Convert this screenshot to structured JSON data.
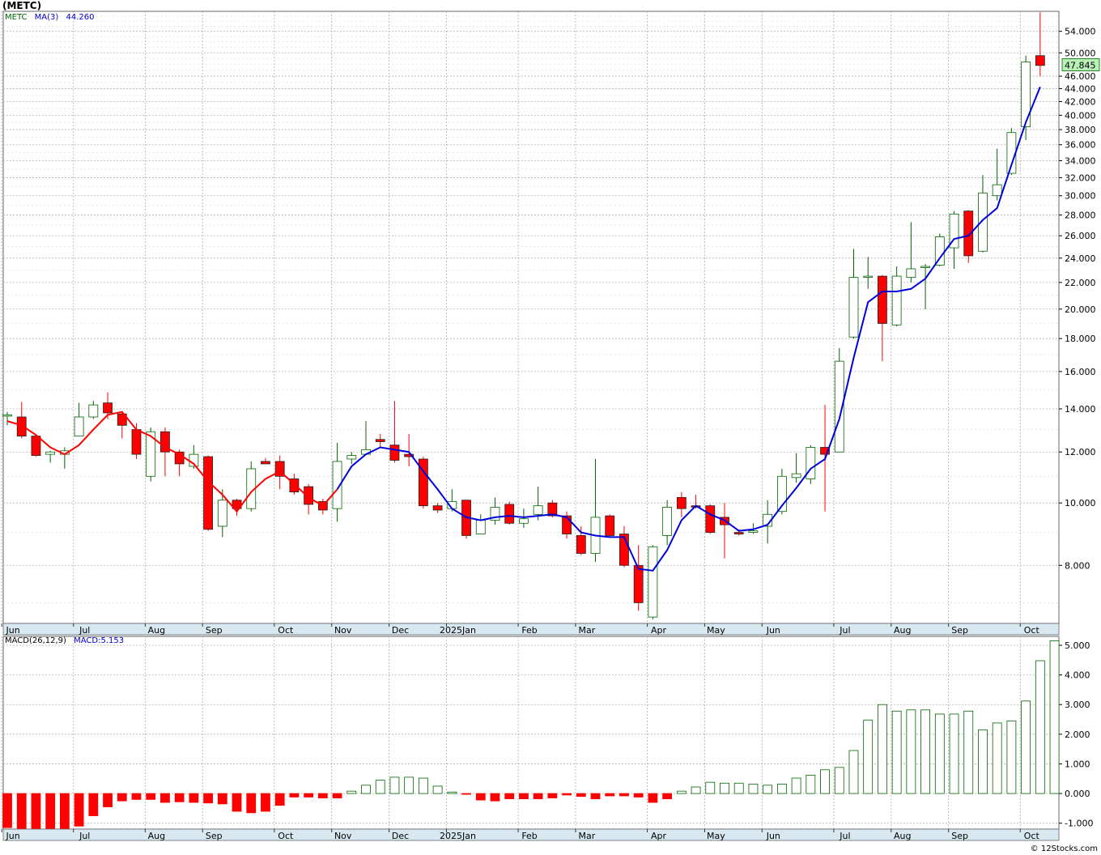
{
  "header": {
    "title": "(METC)",
    "legend": {
      "symbol": "METC",
      "ma_label": "MA(3)",
      "ma_value": "44.260"
    },
    "macd_legend": {
      "label": "MACD(26,12,9)",
      "value_label": "MACD:5.153"
    },
    "copyright": "© 12Stocks.com"
  },
  "colors": {
    "up": "#006400",
    "down": "#ff0000",
    "ma_up": "#0000dd",
    "ma_down": "#ff0000",
    "axis_bar": "#d8e8f0",
    "last_price_bg": "#b8f0b8"
  },
  "chart_data": [
    {
      "type": "candlestick",
      "scale": "log",
      "ylim": [
        6.5,
        58
      ],
      "yticks": [
        "54.000",
        "50.000",
        "46.000",
        "44.000",
        "42.000",
        "40.000",
        "38.000",
        "36.000",
        "34.000",
        "32.000",
        "30.000",
        "28.000",
        "26.000",
        "24.000",
        "22.000",
        "20.000",
        "18.000",
        "16.000",
        "14.000",
        "12.000",
        "10.000",
        "8.000"
      ],
      "x_month_labels": [
        "Jun",
        "Jul",
        "Aug",
        "Sep",
        "Oct",
        "Nov",
        "Dec",
        "2025Jan",
        "Feb",
        "Mar",
        "Apr",
        "May",
        "Jun",
        "Jul",
        "Aug",
        "Sep",
        "Oct"
      ],
      "last_price": "47.845",
      "candles": [
        {
          "o": 13.7,
          "h": 13.85,
          "l": 13.2,
          "c": 13.7
        },
        {
          "o": 13.6,
          "h": 14.35,
          "l": 12.6,
          "c": 12.7
        },
        {
          "o": 12.7,
          "h": 12.75,
          "l": 11.8,
          "c": 11.85
        },
        {
          "o": 11.9,
          "h": 12.05,
          "l": 11.55,
          "c": 12.0
        },
        {
          "o": 11.9,
          "h": 12.2,
          "l": 11.3,
          "c": 12.05
        },
        {
          "o": 12.7,
          "h": 14.3,
          "l": 12.7,
          "c": 13.6
        },
        {
          "o": 13.6,
          "h": 14.4,
          "l": 13.5,
          "c": 14.2
        },
        {
          "o": 14.3,
          "h": 14.85,
          "l": 13.5,
          "c": 13.8
        },
        {
          "o": 13.75,
          "h": 13.85,
          "l": 12.6,
          "c": 13.2
        },
        {
          "o": 13.0,
          "h": 13.3,
          "l": 11.7,
          "c": 11.9
        },
        {
          "o": 11.0,
          "h": 13.1,
          "l": 10.8,
          "c": 12.9
        },
        {
          "o": 12.9,
          "h": 13.1,
          "l": 11.0,
          "c": 12.0
        },
        {
          "o": 12.0,
          "h": 12.1,
          "l": 11.0,
          "c": 11.5
        },
        {
          "o": 11.4,
          "h": 12.3,
          "l": 11.3,
          "c": 11.9
        },
        {
          "o": 11.8,
          "h": 11.85,
          "l": 9.05,
          "c": 9.1
        },
        {
          "o": 9.2,
          "h": 10.5,
          "l": 8.85,
          "c": 10.1
        },
        {
          "o": 10.1,
          "h": 10.15,
          "l": 9.55,
          "c": 9.8
        },
        {
          "o": 9.8,
          "h": 11.6,
          "l": 9.7,
          "c": 11.3
        },
        {
          "o": 11.6,
          "h": 11.75,
          "l": 11.5,
          "c": 11.5
        },
        {
          "o": 11.6,
          "h": 11.85,
          "l": 10.5,
          "c": 11.0
        },
        {
          "o": 10.9,
          "h": 11.1,
          "l": 10.3,
          "c": 10.4
        },
        {
          "o": 10.6,
          "h": 10.7,
          "l": 9.6,
          "c": 9.95
        },
        {
          "o": 10.05,
          "h": 10.15,
          "l": 9.6,
          "c": 9.75
        },
        {
          "o": 9.8,
          "h": 12.4,
          "l": 9.35,
          "c": 11.6
        },
        {
          "o": 11.7,
          "h": 12.0,
          "l": 11.5,
          "c": 11.85
        },
        {
          "o": 11.9,
          "h": 13.4,
          "l": 11.9,
          "c": 12.1
        },
        {
          "o": 12.55,
          "h": 12.8,
          "l": 12.2,
          "c": 12.45
        },
        {
          "o": 12.3,
          "h": 14.4,
          "l": 11.55,
          "c": 11.65
        },
        {
          "o": 11.9,
          "h": 12.8,
          "l": 11.4,
          "c": 11.8
        },
        {
          "o": 11.7,
          "h": 11.8,
          "l": 9.8,
          "c": 9.9
        },
        {
          "o": 9.9,
          "h": 10.0,
          "l": 9.65,
          "c": 9.75
        },
        {
          "o": 9.8,
          "h": 10.5,
          "l": 9.7,
          "c": 10.05
        },
        {
          "o": 10.1,
          "h": 10.1,
          "l": 8.8,
          "c": 8.9
        },
        {
          "o": 8.95,
          "h": 9.6,
          "l": 8.95,
          "c": 9.4
        },
        {
          "o": 9.4,
          "h": 10.2,
          "l": 9.25,
          "c": 9.85
        },
        {
          "o": 9.95,
          "h": 10.05,
          "l": 9.25,
          "c": 9.3
        },
        {
          "o": 9.3,
          "h": 9.8,
          "l": 9.15,
          "c": 9.45
        },
        {
          "o": 9.6,
          "h": 10.6,
          "l": 9.4,
          "c": 9.9
        },
        {
          "o": 10.0,
          "h": 10.1,
          "l": 9.5,
          "c": 9.55
        },
        {
          "o": 9.55,
          "h": 9.7,
          "l": 8.8,
          "c": 8.95
        },
        {
          "o": 8.9,
          "h": 9.2,
          "l": 8.3,
          "c": 8.35
        },
        {
          "o": 8.35,
          "h": 11.7,
          "l": 8.1,
          "c": 9.5
        },
        {
          "o": 9.55,
          "h": 9.6,
          "l": 8.85,
          "c": 8.9
        },
        {
          "o": 8.95,
          "h": 9.2,
          "l": 7.95,
          "c": 8.0
        },
        {
          "o": 8.0,
          "h": 8.6,
          "l": 6.8,
          "c": 7.0
        },
        {
          "o": 6.65,
          "h": 8.6,
          "l": 6.6,
          "c": 8.55
        },
        {
          "o": 8.9,
          "h": 10.1,
          "l": 8.6,
          "c": 9.85
        },
        {
          "o": 10.2,
          "h": 10.4,
          "l": 9.5,
          "c": 9.8
        },
        {
          "o": 9.9,
          "h": 10.3,
          "l": 9.8,
          "c": 9.85
        },
        {
          "o": 9.9,
          "h": 9.95,
          "l": 8.95,
          "c": 9.0
        },
        {
          "o": 9.5,
          "h": 10.0,
          "l": 8.2,
          "c": 9.25
        },
        {
          "o": 9.0,
          "h": 9.1,
          "l": 8.9,
          "c": 8.95
        },
        {
          "o": 9.0,
          "h": 9.3,
          "l": 8.95,
          "c": 9.05
        },
        {
          "o": 9.2,
          "h": 10.1,
          "l": 8.65,
          "c": 9.6
        },
        {
          "o": 9.7,
          "h": 11.3,
          "l": 9.6,
          "c": 11.0
        },
        {
          "o": 10.95,
          "h": 11.95,
          "l": 10.75,
          "c": 11.1
        },
        {
          "o": 10.9,
          "h": 12.3,
          "l": 10.7,
          "c": 12.2
        },
        {
          "o": 12.2,
          "h": 14.2,
          "l": 9.7,
          "c": 11.9
        },
        {
          "o": 12.0,
          "h": 17.4,
          "l": 12.0,
          "c": 16.6
        },
        {
          "o": 18.1,
          "h": 24.8,
          "l": 18.0,
          "c": 22.4
        },
        {
          "o": 22.5,
          "h": 24.1,
          "l": 21.5,
          "c": 22.5
        },
        {
          "o": 22.5,
          "h": 22.6,
          "l": 16.6,
          "c": 19.0
        },
        {
          "o": 18.9,
          "h": 23.3,
          "l": 18.8,
          "c": 22.5
        },
        {
          "o": 22.4,
          "h": 27.3,
          "l": 22.0,
          "c": 23.1
        },
        {
          "o": 23.2,
          "h": 23.5,
          "l": 20.0,
          "c": 23.3
        },
        {
          "o": 23.4,
          "h": 26.2,
          "l": 23.3,
          "c": 25.9
        },
        {
          "o": 24.9,
          "h": 28.4,
          "l": 23.1,
          "c": 28.1
        },
        {
          "o": 28.4,
          "h": 28.5,
          "l": 23.6,
          "c": 24.2
        },
        {
          "o": 24.6,
          "h": 32.3,
          "l": 24.5,
          "c": 30.3
        },
        {
          "o": 30.0,
          "h": 35.5,
          "l": 29.5,
          "c": 31.2
        },
        {
          "o": 32.5,
          "h": 38.2,
          "l": 32.3,
          "c": 37.6
        },
        {
          "o": 38.4,
          "h": 49.5,
          "l": 36.6,
          "c": 48.4
        },
        {
          "o": 49.5,
          "h": 57.8,
          "l": 46.0,
          "c": 47.8
        }
      ],
      "ma3": [
        13.4,
        13.2,
        12.75,
        12.2,
        11.9,
        12.3,
        13.0,
        13.7,
        13.85,
        13.0,
        12.7,
        12.2,
        11.9,
        11.5,
        10.8,
        10.3,
        9.7,
        10.4,
        10.9,
        11.2,
        10.7,
        10.2,
        9.9,
        10.5,
        11.4,
        11.9,
        12.2,
        12.1,
        12.0,
        11.2,
        10.5,
        9.8,
        9.5,
        9.4,
        9.5,
        9.55,
        9.5,
        9.55,
        9.6,
        9.5,
        9.0,
        8.9,
        8.85,
        8.85,
        7.9,
        7.85,
        8.45,
        9.4,
        9.9,
        9.6,
        9.4,
        9.05,
        9.1,
        9.25,
        9.9,
        10.55,
        11.3,
        11.7,
        13.5,
        16.8,
        20.5,
        21.3,
        21.3,
        21.5,
        22.3,
        24.0,
        25.7,
        26.0,
        27.5,
        28.7,
        33.5,
        39.0,
        44.26
      ],
      "ma_color_switch_index": 23
    },
    {
      "type": "bar",
      "title": "MACD(26,12,9)",
      "ylim": [
        -1.2,
        5.3
      ],
      "yticks": [
        "5.000",
        "4.000",
        "3.000",
        "2.000",
        "1.000",
        "0.000",
        "-1.000"
      ],
      "values": [
        -1.15,
        -1.2,
        -1.22,
        -1.22,
        -1.22,
        -1.1,
        -0.75,
        -0.45,
        -0.25,
        -0.2,
        -0.2,
        -0.3,
        -0.28,
        -0.3,
        -0.32,
        -0.35,
        -0.6,
        -0.65,
        -0.6,
        -0.4,
        -0.12,
        -0.12,
        -0.15,
        -0.15,
        0.08,
        0.28,
        0.45,
        0.55,
        0.55,
        0.52,
        0.25,
        0.05,
        -0.02,
        -0.22,
        -0.25,
        -0.18,
        -0.18,
        -0.18,
        -0.15,
        -0.05,
        -0.1,
        -0.18,
        -0.08,
        -0.08,
        -0.12,
        -0.3,
        -0.18,
        0.08,
        0.22,
        0.38,
        0.35,
        0.35,
        0.32,
        0.28,
        0.32,
        0.52,
        0.62,
        0.8,
        0.88,
        1.45,
        2.48,
        3.0,
        2.78,
        2.82,
        2.82,
        2.68,
        2.68,
        2.78,
        2.15,
        2.38,
        2.45,
        3.12,
        4.48,
        5.15
      ]
    }
  ]
}
